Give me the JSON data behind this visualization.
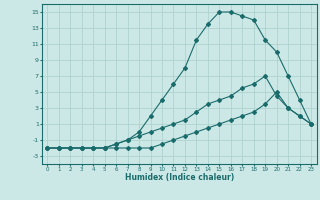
{
  "xlabel": "Humidex (Indice chaleur)",
  "background_color": "#cce8e6",
  "grid_color": "#aacfcc",
  "line_color": "#1a6b6b",
  "xlim": [
    -0.5,
    23.5
  ],
  "ylim": [
    -4,
    16
  ],
  "xticks": [
    0,
    1,
    2,
    3,
    4,
    5,
    6,
    7,
    8,
    9,
    10,
    11,
    12,
    13,
    14,
    15,
    16,
    17,
    18,
    19,
    20,
    21,
    22,
    23
  ],
  "yticks": [
    -3,
    -1,
    1,
    3,
    5,
    7,
    9,
    11,
    13,
    15
  ],
  "line1_x": [
    0,
    1,
    2,
    3,
    4,
    5,
    6,
    7,
    8,
    9,
    10,
    11,
    12,
    13,
    14,
    15,
    16,
    17,
    18,
    19,
    20,
    21,
    22,
    23
  ],
  "line1_y": [
    -2,
    -2,
    -2,
    -2,
    -2,
    -2,
    -2,
    -2,
    -2,
    -2,
    -1.5,
    -1,
    -0.5,
    0,
    0.5,
    1,
    1.5,
    2,
    2.5,
    3.5,
    5,
    3,
    2,
    1
  ],
  "line2_x": [
    0,
    1,
    2,
    3,
    4,
    5,
    6,
    7,
    8,
    9,
    10,
    11,
    12,
    13,
    14,
    15,
    16,
    17,
    18,
    19,
    20,
    21,
    22,
    23
  ],
  "line2_y": [
    -2,
    -2,
    -2,
    -2,
    -2,
    -2,
    -1.5,
    -1,
    0,
    2,
    4,
    6,
    8,
    11.5,
    13.5,
    15,
    15,
    14.5,
    14,
    11.5,
    10,
    7,
    4,
    1
  ],
  "line3_x": [
    0,
    1,
    2,
    3,
    4,
    5,
    6,
    7,
    8,
    9,
    10,
    11,
    12,
    13,
    14,
    15,
    16,
    17,
    18,
    19,
    20,
    21,
    22,
    23
  ],
  "line3_y": [
    -2,
    -2,
    -2,
    -2,
    -2,
    -2,
    -1.5,
    -1,
    -0.5,
    0,
    0.5,
    1,
    1.5,
    2.5,
    3.5,
    4,
    4.5,
    5.5,
    6,
    7,
    4.5,
    3,
    2,
    1
  ]
}
